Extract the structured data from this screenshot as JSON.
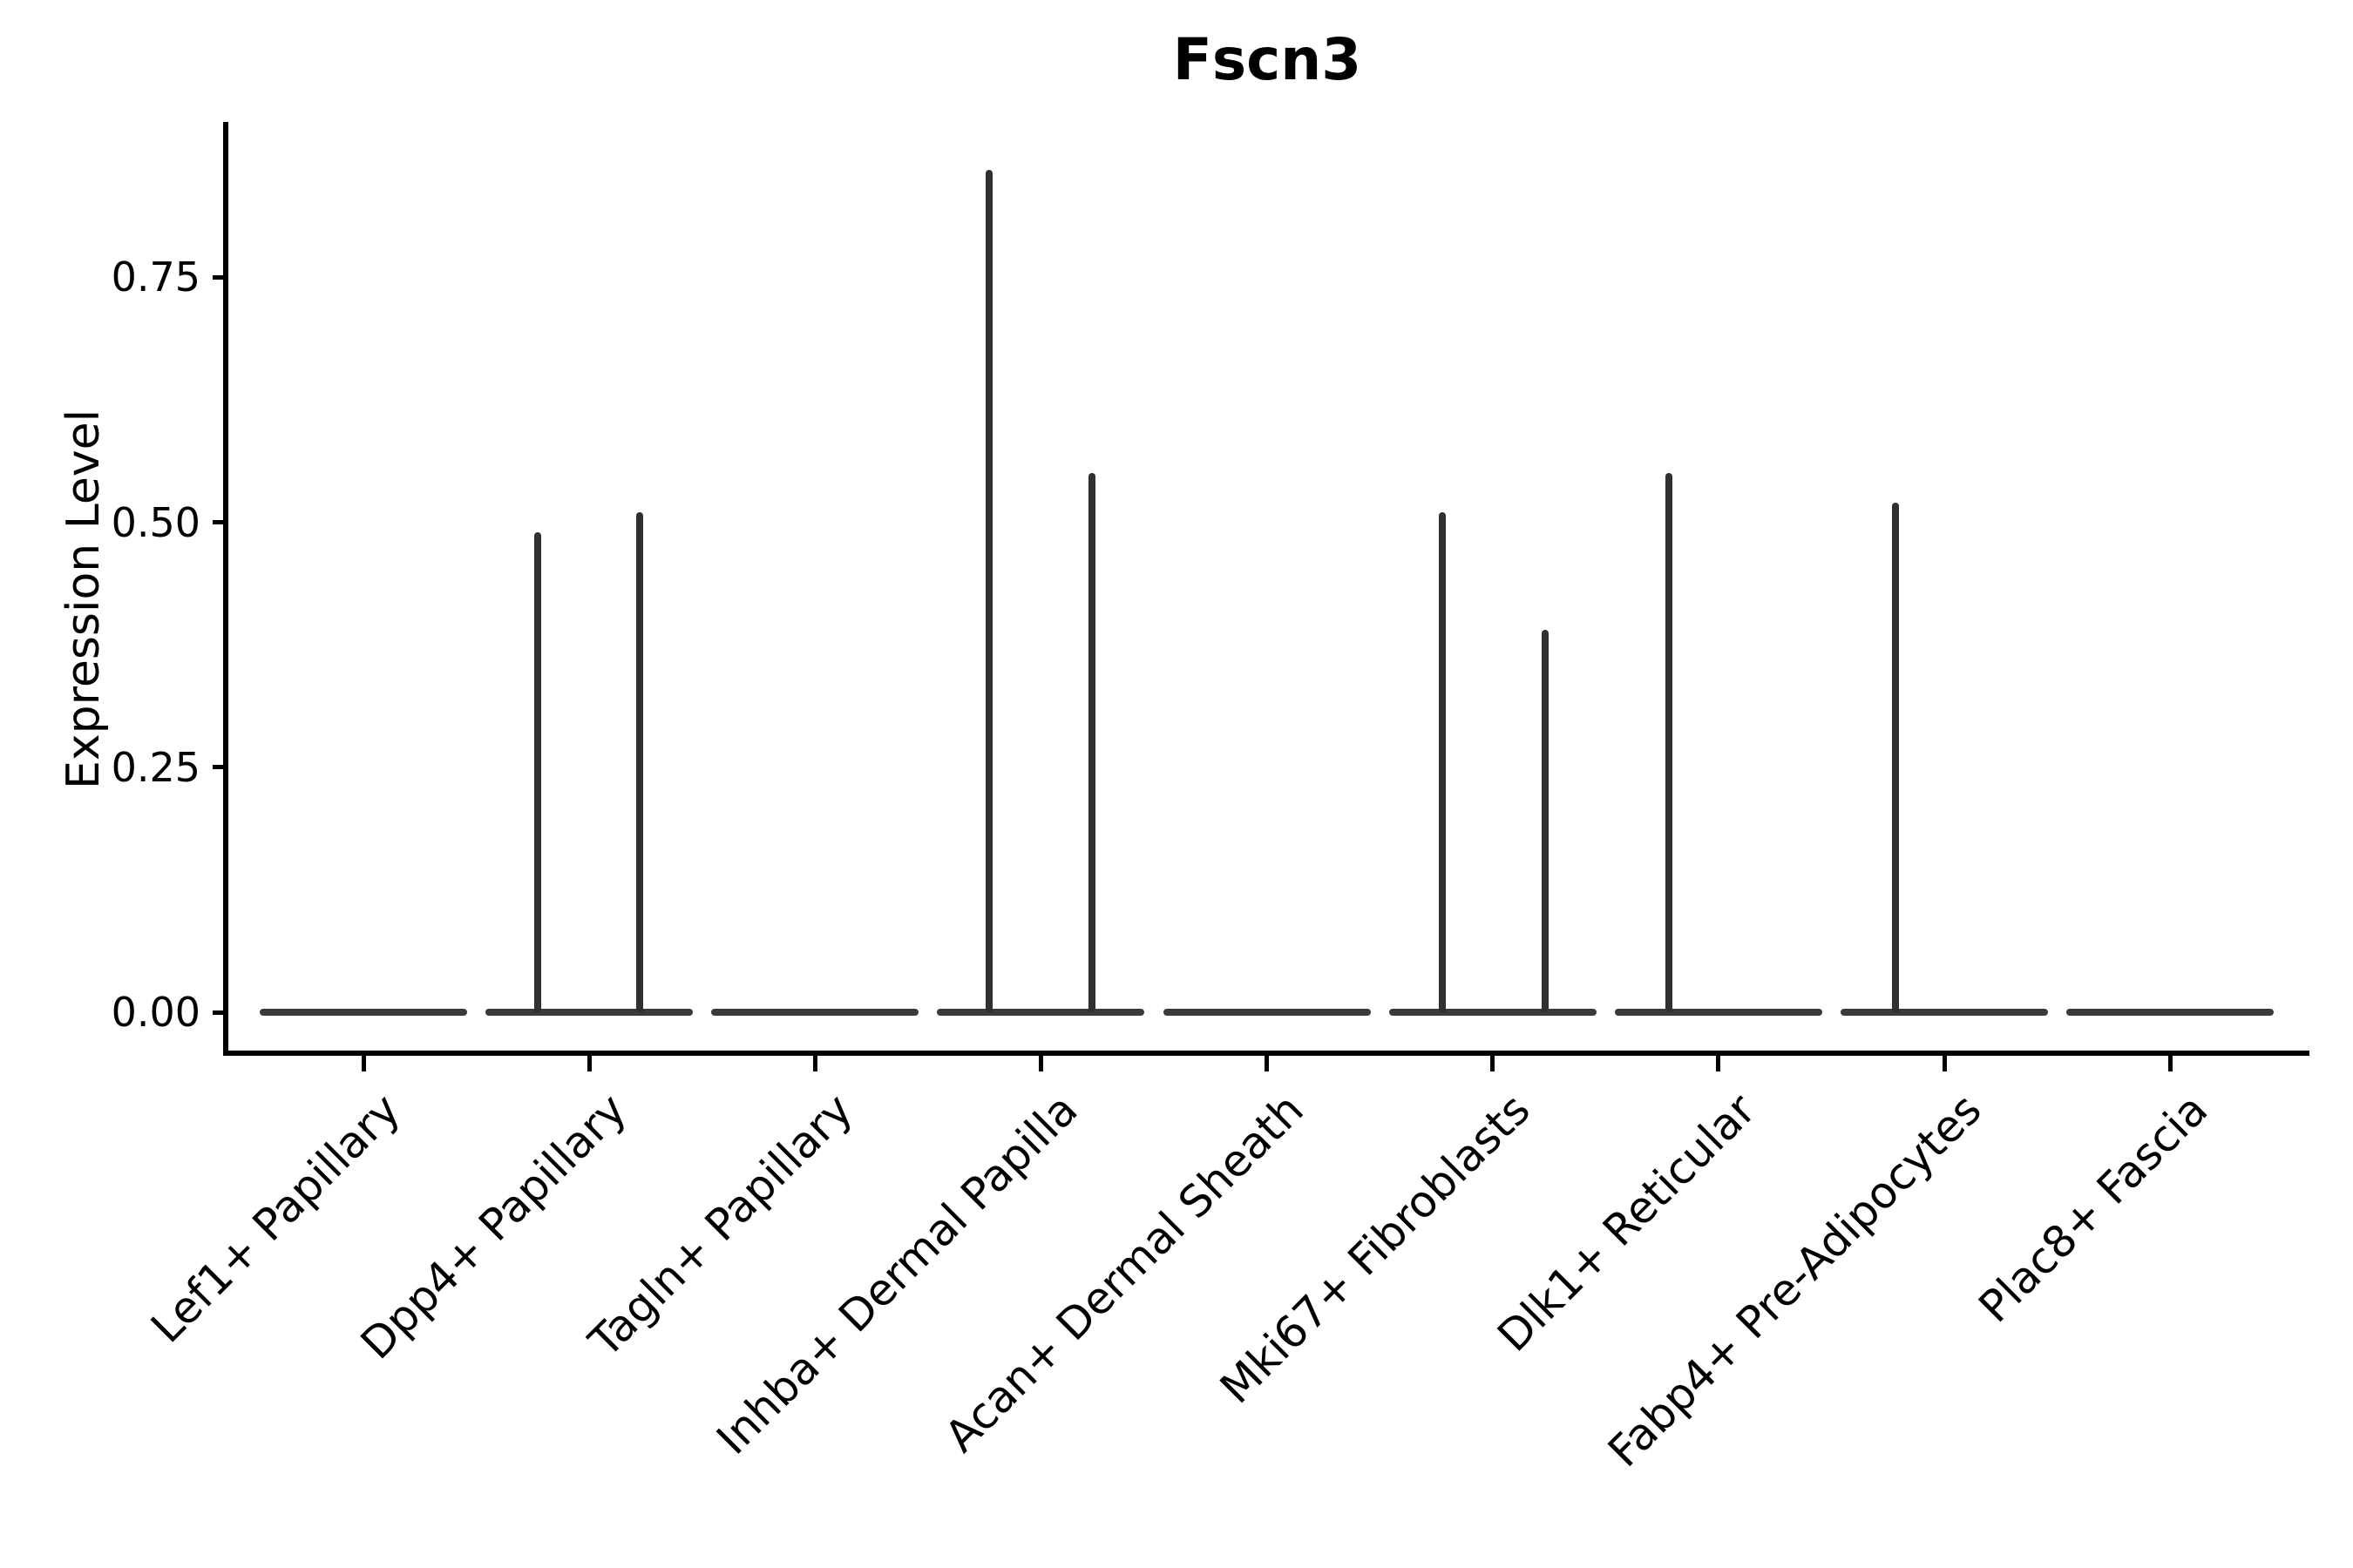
{
  "chart_data": {
    "type": "violin",
    "title": "Fscn3",
    "xlabel": "",
    "ylabel": "Expression Level",
    "ylim": [
      0,
      0.91
    ],
    "grid": false,
    "legend": "none",
    "ytick_labels": [
      "0.00",
      "0.25",
      "0.50",
      "0.75"
    ],
    "ytick_values": [
      0.0,
      0.25,
      0.5,
      0.75
    ],
    "categories": [
      "Lef1+ Papillary",
      "Dpp4+ Papillary",
      "Tagln+ Papillary",
      "Inhba+ Dermal Papilla",
      "Acan+ Dermal Sheath",
      "Mki67+ Fibroblasts",
      "Dlk1+ Reticular",
      "Fabp4+ Pre-Adipocytes",
      "Plac8+ Fascia"
    ],
    "violins": [
      {
        "category": "Lef1+ Papillary",
        "baseline_value": 0,
        "spikes": []
      },
      {
        "category": "Dpp4+ Papillary",
        "baseline_value": 0,
        "spikes": [
          {
            "offset": -59,
            "value": 0.49
          },
          {
            "offset": 58,
            "value": 0.51
          }
        ]
      },
      {
        "category": "Tagln+ Papillary",
        "baseline_value": 0,
        "spikes": []
      },
      {
        "category": "Inhba+ Dermal Papilla",
        "baseline_value": 0,
        "spikes": [
          {
            "offset": -59,
            "value": 0.86
          },
          {
            "offset": 59,
            "value": 0.55
          }
        ]
      },
      {
        "category": "Acan+ Dermal Sheath",
        "baseline_value": 0,
        "spikes": []
      },
      {
        "category": "Mki67+ Fibroblasts",
        "baseline_value": 0,
        "spikes": [
          {
            "offset": -58,
            "value": 0.51
          },
          {
            "offset": 60,
            "value": 0.39
          }
        ]
      },
      {
        "category": "Dlk1+ Reticular",
        "baseline_value": 0,
        "spikes": [
          {
            "offset": -57,
            "value": 0.55
          }
        ]
      },
      {
        "category": "Fabp4+ Pre-Adipocytes",
        "baseline_value": 0,
        "spikes": [
          {
            "offset": -56,
            "value": 0.52
          }
        ]
      },
      {
        "category": "Plac8+ Fascia",
        "baseline_value": 0,
        "spikes": []
      }
    ],
    "colors": {
      "background": "#ffffff",
      "axis": "#000000",
      "text": "#000000",
      "violin_line": "#3a3a3a",
      "spike": "#303030"
    }
  }
}
